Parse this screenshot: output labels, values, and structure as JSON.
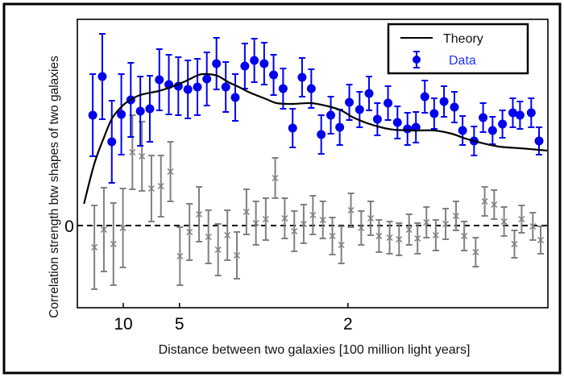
{
  "chart_data": {
    "type": "scatter",
    "xlabel": "Distance between two galaxies [100 million light years]",
    "ylabel": "Correlation strength btw shapes of two galaxies",
    "x_scale": "reciprocal",
    "xlim": [
      50,
      1.17
    ],
    "ylim": [
      -1.0,
      2.55
    ],
    "x_ticks": [
      "10",
      "5",
      "2"
    ],
    "x_tick_values": [
      10,
      5,
      2
    ],
    "y_ticks": [
      "0"
    ],
    "y_tick_values": [
      0
    ],
    "zero_line": "dashed",
    "grid": false,
    "legend": {
      "position": "top-right",
      "entries": [
        "Theory",
        "Data"
      ]
    },
    "colors": {
      "theory": "#000000",
      "data": "#0000ee",
      "control": "#808080"
    },
    "x": [
      21.9,
      15.97,
      12.57,
      10.36,
      8.82,
      7.67,
      6.79,
      6.09,
      5.52,
      5.05,
      4.65,
      4.31,
      4.02,
      3.76,
      3.54,
      3.34,
      3.16,
      3.0,
      2.85,
      2.72,
      2.6,
      2.49,
      2.39,
      2.3,
      2.21,
      2.13,
      2.06,
      1.99,
      1.92,
      1.86,
      1.81,
      1.75,
      1.7,
      1.65,
      1.61,
      1.57,
      1.53,
      1.49,
      1.45,
      1.42,
      1.38,
      1.35,
      1.32,
      1.29,
      1.26,
      1.24,
      1.21,
      1.19
    ],
    "series": [
      {
        "name": "Data",
        "style": "points-errorbars",
        "y": [
          1.37,
          1.85,
          1.04,
          1.38,
          1.56,
          1.42,
          1.45,
          1.81,
          1.75,
          1.73,
          1.69,
          1.72,
          1.82,
          2.01,
          1.72,
          1.59,
          1.98,
          2.05,
          2.01,
          1.87,
          1.7,
          1.21,
          1.84,
          1.7,
          1.13,
          1.37,
          1.22,
          1.53,
          1.44,
          1.64,
          1.32,
          1.52,
          1.28,
          1.2,
          1.22,
          1.6,
          1.39,
          1.54,
          1.47,
          1.18,
          1.05,
          1.34,
          1.18,
          1.26,
          1.4,
          1.37,
          1.4,
          1.05
        ],
        "yerr": [
          0.51,
          0.53,
          0.51,
          0.5,
          0.46,
          0.43,
          0.41,
          0.38,
          0.37,
          0.36,
          0.36,
          0.35,
          0.33,
          0.32,
          0.31,
          0.29,
          0.28,
          0.27,
          0.26,
          0.25,
          0.25,
          0.24,
          0.24,
          0.24,
          0.24,
          0.23,
          0.22,
          0.22,
          0.22,
          0.21,
          0.2,
          0.21,
          0.2,
          0.2,
          0.19,
          0.2,
          0.19,
          0.19,
          0.19,
          0.18,
          0.18,
          0.18,
          0.17,
          0.17,
          0.18,
          0.17,
          0.18,
          0.17
        ]
      },
      {
        "style": "crosses-errorbars",
        "y": [
          -0.27,
          -0.05,
          -0.23,
          -0.03,
          0.91,
          0.86,
          0.46,
          0.49,
          0.67,
          -0.38,
          -0.08,
          0.14,
          -0.14,
          -0.3,
          -0.12,
          -0.37,
          0.17,
          0.03,
          0.08,
          0.59,
          0.09,
          -0.07,
          0.02,
          0.13,
          0.07,
          -0.13,
          -0.24,
          0.19,
          -0.03,
          0.09,
          -0.13,
          -0.15,
          -0.17,
          -0.05,
          -0.16,
          0.04,
          -0.12,
          0.02,
          0.12,
          -0.13,
          -0.33,
          0.3,
          0.26,
          0.05,
          -0.23,
          0.08,
          -0.01,
          -0.18
        ],
        "yerr": [
          0.52,
          0.52,
          0.51,
          0.49,
          0.46,
          0.43,
          0.41,
          0.38,
          0.37,
          0.36,
          0.35,
          0.34,
          0.33,
          0.32,
          0.31,
          0.29,
          0.28,
          0.27,
          0.26,
          0.25,
          0.25,
          0.25,
          0.24,
          0.24,
          0.23,
          0.23,
          0.23,
          0.21,
          0.21,
          0.21,
          0.2,
          0.2,
          0.2,
          0.19,
          0.19,
          0.19,
          0.19,
          0.19,
          0.18,
          0.18,
          0.18,
          0.18,
          0.18,
          0.18,
          0.17,
          0.17,
          0.17,
          0.17
        ]
      },
      {
        "name": "Theory",
        "style": "line",
        "x": [
          33.3,
          20.6,
          14.9,
          12.5,
          10.4,
          9.09,
          7.69,
          6.14,
          5.51,
          4.76,
          4.27,
          4.02,
          3.74,
          3.48,
          3.27,
          3.07,
          2.82,
          2.68,
          2.49,
          2.3,
          2.15,
          2.05,
          1.96,
          1.87,
          1.79,
          1.72,
          1.62,
          1.53,
          1.46,
          1.41,
          1.36,
          1.3,
          1.24,
          1.19,
          1.17
        ],
        "y": [
          0.27,
          0.77,
          1.12,
          1.33,
          1.47,
          1.55,
          1.62,
          1.67,
          1.71,
          1.79,
          1.87,
          1.88,
          1.86,
          1.78,
          1.72,
          1.65,
          1.57,
          1.52,
          1.51,
          1.52,
          1.48,
          1.43,
          1.34,
          1.27,
          1.22,
          1.19,
          1.18,
          1.18,
          1.14,
          1.08,
          1.03,
          0.98,
          0.96,
          0.94,
          0.93
        ]
      }
    ]
  }
}
